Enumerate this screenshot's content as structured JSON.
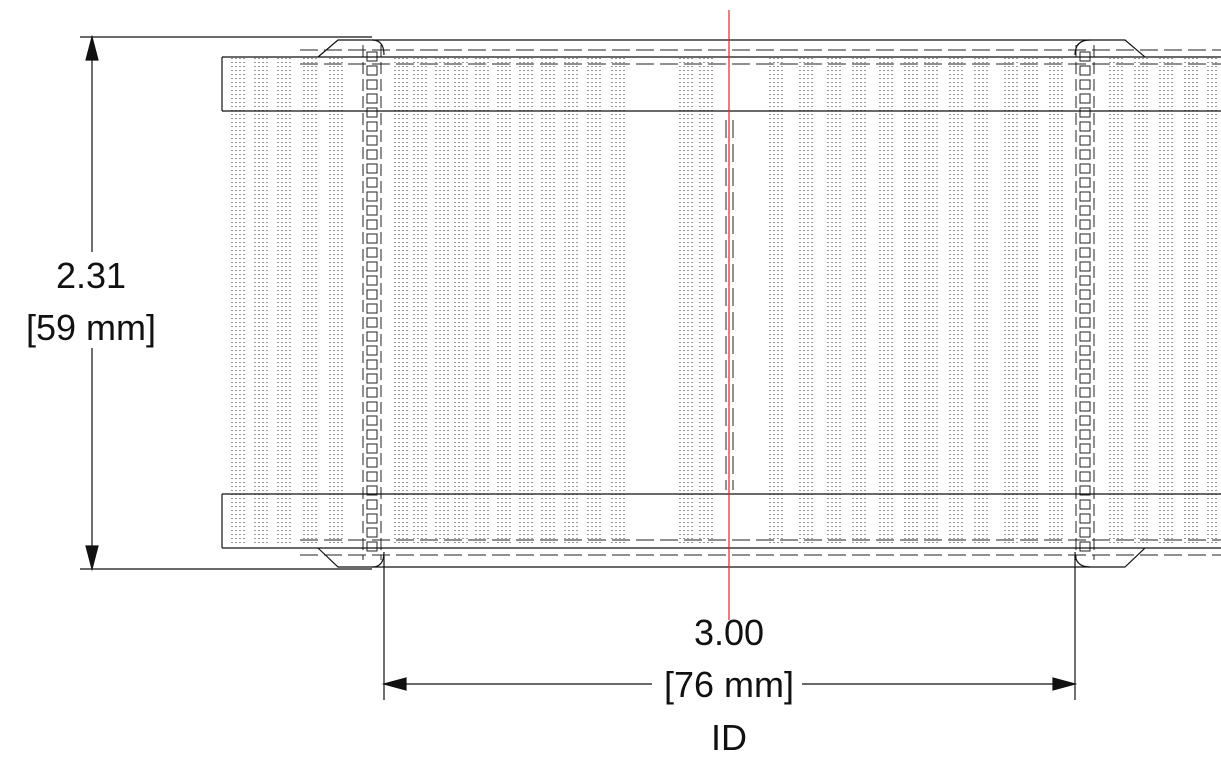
{
  "height_dimension": {
    "value": "2.31",
    "metric": "[59 mm]"
  },
  "id_dimension": {
    "value": "3.00",
    "metric": "[76 mm]",
    "label": "ID"
  },
  "colors": {
    "line": "#111111",
    "centerline": "#e0262d",
    "background": "#ffffff"
  }
}
